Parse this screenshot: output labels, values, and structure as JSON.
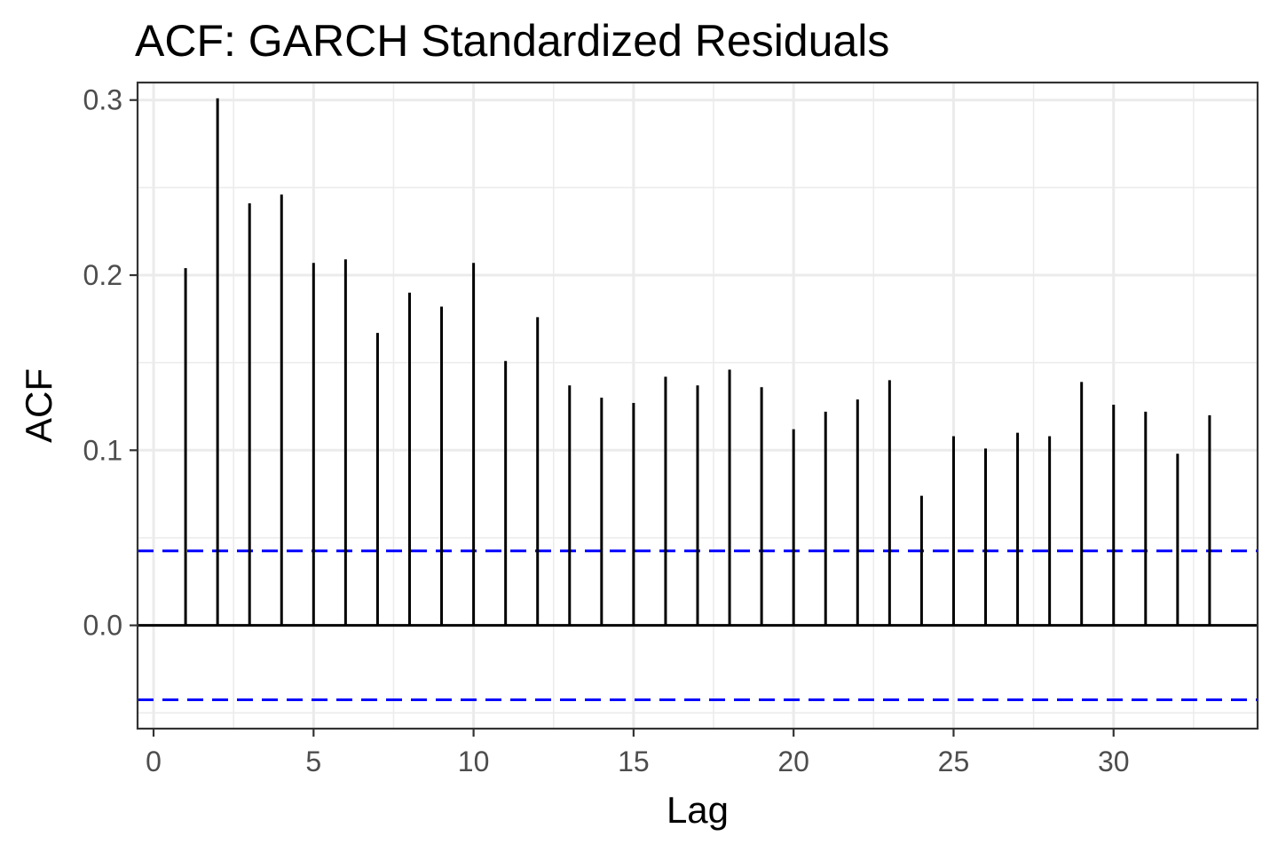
{
  "chart_data": {
    "type": "bar",
    "title": "ACF: GARCH Standardized Residuals",
    "xlabel": "Lag",
    "ylabel": "ACF",
    "xlim": [
      -0.5,
      34.5
    ],
    "ylim": [
      -0.059,
      0.31
    ],
    "x_ticks": [
      0,
      5,
      10,
      15,
      20,
      25,
      30
    ],
    "x_tick_labels": [
      "0",
      "5",
      "10",
      "15",
      "20",
      "25",
      "30"
    ],
    "x_minor_ticks": [
      2.5,
      7.5,
      12.5,
      17.5,
      22.5,
      27.5,
      32.5
    ],
    "y_ticks": [
      0.0,
      0.1,
      0.2,
      0.3
    ],
    "y_tick_labels": [
      "0.0",
      "0.1",
      "0.2",
      "0.3"
    ],
    "y_minor_ticks": [
      -0.05,
      0.05,
      0.15,
      0.25
    ],
    "grid": true,
    "lags": [
      1,
      2,
      3,
      4,
      5,
      6,
      7,
      8,
      9,
      10,
      11,
      12,
      13,
      14,
      15,
      16,
      17,
      18,
      19,
      20,
      21,
      22,
      23,
      24,
      25,
      26,
      27,
      28,
      29,
      30,
      31,
      32,
      33
    ],
    "values": [
      0.204,
      0.301,
      0.241,
      0.246,
      0.207,
      0.209,
      0.167,
      0.19,
      0.182,
      0.207,
      0.151,
      0.176,
      0.137,
      0.13,
      0.127,
      0.142,
      0.137,
      0.146,
      0.136,
      0.112,
      0.122,
      0.129,
      0.14,
      0.074,
      0.108,
      0.101,
      0.11,
      0.108,
      0.139,
      0.126,
      0.122,
      0.098,
      0.12
    ],
    "confidence_bound": 0.0425,
    "bar_color": "#000000",
    "ci_color": "#0000ff"
  }
}
